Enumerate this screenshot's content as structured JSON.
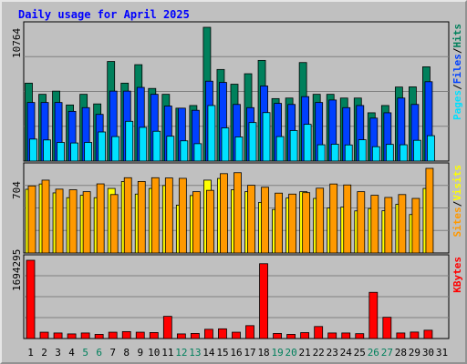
{
  "title": "Daily usage for April 2025",
  "colors": {
    "hits": "#00805c",
    "files": "#0040ff",
    "pages": "#00e0ff",
    "visits": "#ffff00",
    "sites": "#ff9900",
    "kbytes": "#ff0000",
    "weekend_label": "#00805c",
    "weekday_label": "#000000",
    "plot_bg": "#c0c0c0",
    "grid": "#808080",
    "title": "#0000ff"
  },
  "chart_data": [
    {
      "type": "bar",
      "panel": "hits_files_pages",
      "ymax_label": "10764",
      "ylim": [
        0,
        10764
      ],
      "legend": [
        {
          "text": "Hits",
          "color": "#00805c"
        },
        {
          "text": "/",
          "color": "#000000"
        },
        {
          "text": "Files",
          "color": "#0040ff"
        },
        {
          "text": "/",
          "color": "#000000"
        },
        {
          "text": "Pages",
          "color": "#00e0ff"
        }
      ],
      "series": [
        {
          "name": "Hits",
          "values": [
            6271,
            5371,
            5627,
            4514,
            5371,
            4600,
            8014,
            6271,
            7757,
            5843,
            5371,
            4257,
            4471,
            10764,
            7371,
            6186,
            7028,
            8100,
            5027,
            5071,
            7928,
            5371,
            5371,
            5071,
            5071,
            3886,
            4471,
            5957,
            5971,
            7586
          ]
        },
        {
          "name": "Files",
          "values": [
            4714,
            4714,
            4714,
            4000,
            4300,
            3757,
            5628,
            5628,
            5928,
            5371,
            4429,
            4257,
            4086,
            6428,
            6328,
            4557,
            4300,
            6043,
            4643,
            4557,
            5186,
            4714,
            4914,
            4300,
            4471,
            3457,
            3886,
            5071,
            4557,
            6386
          ]
        },
        {
          "name": "Pages",
          "values": [
            1771,
            1700,
            1500,
            1457,
            1500,
            2343,
            1971,
            3200,
            2714,
            2400,
            2000,
            1629,
            1400,
            4471,
            2671,
            1943,
            3100,
            3900,
            1971,
            2457,
            2957,
            1314,
            1357,
            1300,
            1714,
            1157,
            1343,
            1314,
            1671,
            2043
          ]
        }
      ]
    },
    {
      "type": "bar",
      "panel": "visits_sites",
      "ymax_label": "704",
      "ylim": [
        0,
        704
      ],
      "legend": [
        {
          "text": "Visits",
          "color": "#ffff00"
        },
        {
          "text": "/",
          "color": "#000000"
        },
        {
          "text": "Sites",
          "color": "#ff9900"
        }
      ],
      "series": [
        {
          "name": "Visits",
          "values": [
            530,
            574,
            500,
            460,
            480,
            460,
            537,
            595,
            490,
            537,
            561,
            398,
            478,
            606,
            620,
            526,
            510,
            421,
            362,
            457,
            510,
            454,
            374,
            382,
            350,
            370,
            351,
            405,
            320,
            537
          ]
        },
        {
          "name": "Sites",
          "values": [
            558,
            606,
            531,
            526,
            510,
            575,
            486,
            626,
            595,
            626,
            624,
            621,
            510,
            521,
            660,
            668,
            563,
            547,
            498,
            490,
            502,
            539,
            574,
            566,
            510,
            480,
            462,
            486,
            454,
            704
          ]
        }
      ]
    },
    {
      "type": "bar",
      "panel": "kbytes",
      "ymax_label": "1694295",
      "ylim": [
        0,
        1694295
      ],
      "legend": [
        {
          "text": "KBytes",
          "color": "#ff0000"
        }
      ],
      "series": [
        {
          "name": "KBytes",
          "values": [
            1694295,
            137000,
            120000,
            100000,
            120000,
            90000,
            137000,
            150000,
            137000,
            130000,
            480000,
            100000,
            110000,
            200000,
            210000,
            137000,
            279000,
            1620000,
            110000,
            90000,
            128000,
            260000,
            120000,
            120000,
            105000,
            1000000,
            460000,
            120000,
            140000,
            180000
          ]
        }
      ]
    }
  ],
  "x_labels": {
    "days": [
      "1",
      "2",
      "3",
      "4",
      "5",
      "6",
      "7",
      "8",
      "9",
      "10",
      "11",
      "12",
      "13",
      "14",
      "15",
      "16",
      "17",
      "18",
      "19",
      "20",
      "21",
      "22",
      "23",
      "24",
      "25",
      "26",
      "27",
      "28",
      "29",
      "30",
      "31"
    ],
    "weekend_days": [
      5,
      6,
      12,
      13,
      19,
      20,
      26,
      27
    ]
  }
}
